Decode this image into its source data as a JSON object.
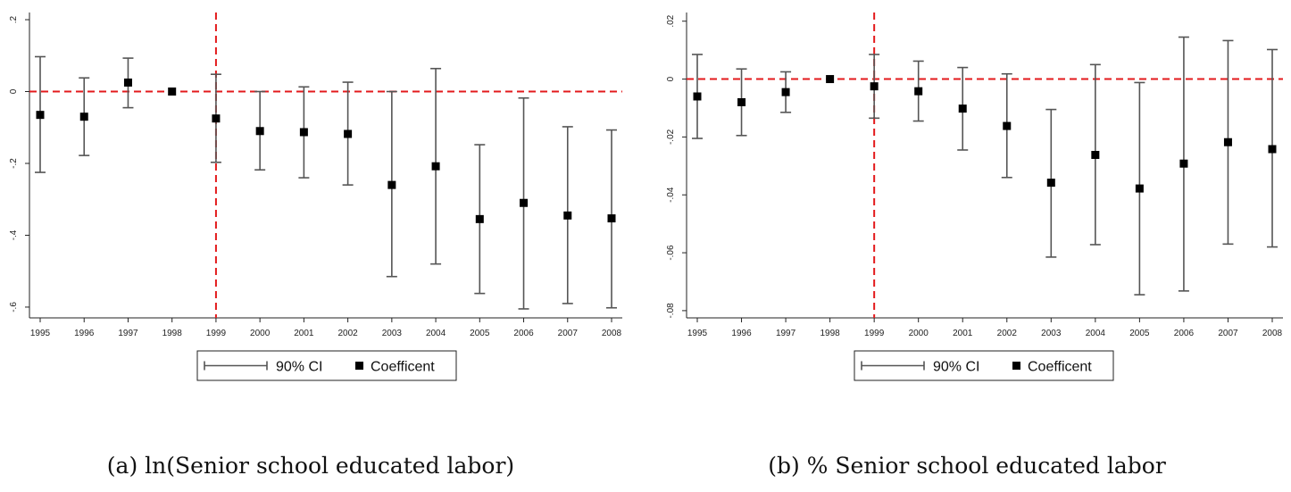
{
  "colors": {
    "reference_line": "#e31a1c",
    "ci": "#555555",
    "point": "#000000",
    "axis": "#222222"
  },
  "chart_data": [
    {
      "type": "scatter",
      "caption": "(a) ln(Senior school educated labor)",
      "x": [
        "1995",
        "1996",
        "1997",
        "1998",
        "1999",
        "2000",
        "2001",
        "2002",
        "2003",
        "2004",
        "2005",
        "2006",
        "2007",
        "2008"
      ],
      "series": [
        {
          "name": "Coefficent",
          "values": [
            -0.065,
            -0.07,
            0.025,
            0.0,
            -0.075,
            -0.11,
            -0.113,
            -0.118,
            -0.26,
            -0.208,
            -0.355,
            -0.31,
            -0.345,
            -0.353
          ]
        },
        {
          "name": "90% CI",
          "lower": [
            -0.225,
            -0.178,
            -0.045,
            0.0,
            -0.197,
            -0.218,
            -0.24,
            -0.26,
            -0.515,
            -0.48,
            -0.562,
            -0.605,
            -0.59,
            -0.602
          ],
          "upper": [
            0.097,
            0.038,
            0.093,
            0.0,
            0.048,
            0.0,
            0.013,
            0.026,
            0.0,
            0.064,
            -0.148,
            -0.018,
            -0.098,
            -0.107
          ]
        }
      ],
      "ylim": [
        -0.63,
        0.22
      ],
      "yticks": [
        0.2,
        0.0,
        -0.2,
        -0.4,
        -0.6
      ],
      "ytick_labels": [
        ".2",
        "0",
        "-.2",
        "-.4",
        "-.6"
      ],
      "hline": 0,
      "vline": "1999",
      "legend": [
        "90% CI",
        "Coefficent"
      ],
      "legend_position": "bottom"
    },
    {
      "type": "scatter",
      "caption": "(b) % Senior school educated labor",
      "x": [
        "1995",
        "1996",
        "1997",
        "1998",
        "1999",
        "2000",
        "2001",
        "2002",
        "2003",
        "2004",
        "2005",
        "2006",
        "2007",
        "2008"
      ],
      "series": [
        {
          "name": "Coefficent",
          "values": [
            -0.006,
            -0.008,
            -0.0045,
            0.0,
            -0.0025,
            -0.0042,
            -0.0102,
            -0.0162,
            -0.0358,
            -0.0262,
            -0.0378,
            -0.0292,
            -0.0218,
            -0.0242
          ]
        },
        {
          "name": "90% CI",
          "lower": [
            -0.0205,
            -0.0195,
            -0.0115,
            0.0,
            -0.0135,
            -0.0145,
            -0.0245,
            -0.034,
            -0.0615,
            -0.0572,
            -0.0745,
            -0.0732,
            -0.057,
            -0.058
          ],
          "upper": [
            0.0085,
            0.0035,
            0.0025,
            0.0,
            0.0085,
            0.0062,
            0.004,
            0.0018,
            -0.0105,
            0.005,
            -0.0012,
            0.0145,
            0.0133,
            0.0102
          ]
        }
      ],
      "ylim": [
        -0.0825,
        0.023
      ],
      "yticks": [
        0.02,
        0.0,
        -0.02,
        -0.04,
        -0.06,
        -0.08
      ],
      "ytick_labels": [
        ".02",
        "0",
        "-.02",
        "-.04",
        "-.06",
        "-.08"
      ],
      "hline": 0,
      "vline": "1999",
      "legend": [
        "90% CI",
        "Coefficent"
      ],
      "legend_position": "bottom"
    }
  ]
}
